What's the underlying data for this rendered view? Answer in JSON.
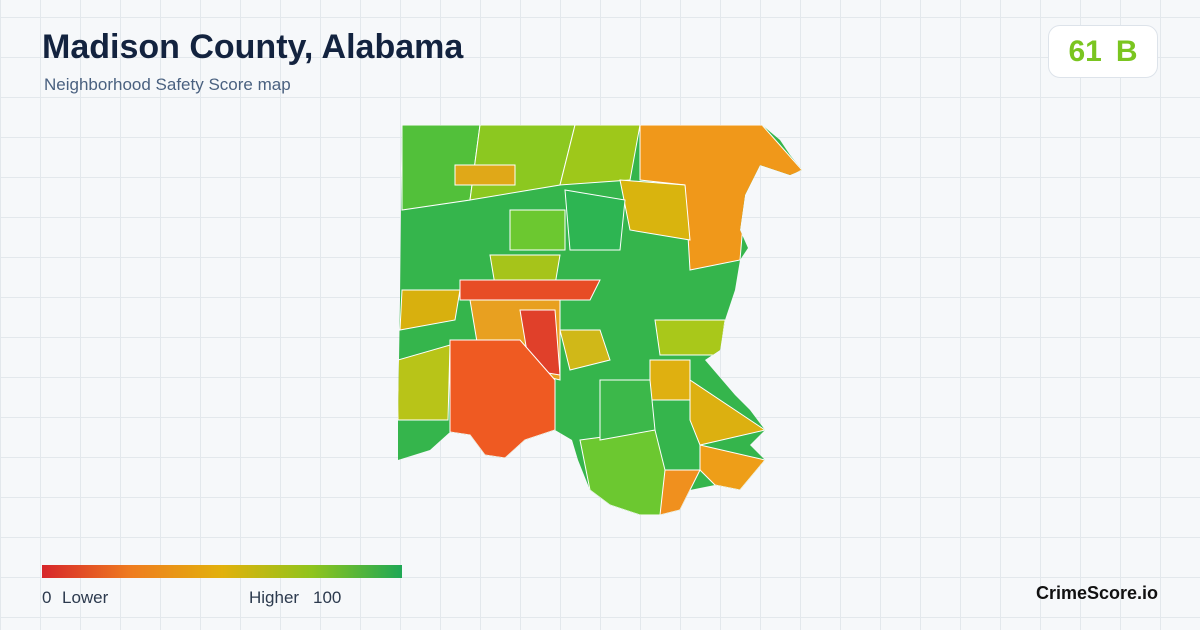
{
  "header": {
    "title": "Madison County, Alabama",
    "subtitle": "Neighborhood Safety Score map"
  },
  "score": {
    "value": 61,
    "grade": "B"
  },
  "legend": {
    "min": 0,
    "min_label": "Lower",
    "max_label": "Higher",
    "max": 100,
    "colors": [
      "#d7262b",
      "#ef7d1f",
      "#e2b10c",
      "#8fc41c",
      "#1fa855"
    ]
  },
  "brand": "CrimeScore.io"
}
